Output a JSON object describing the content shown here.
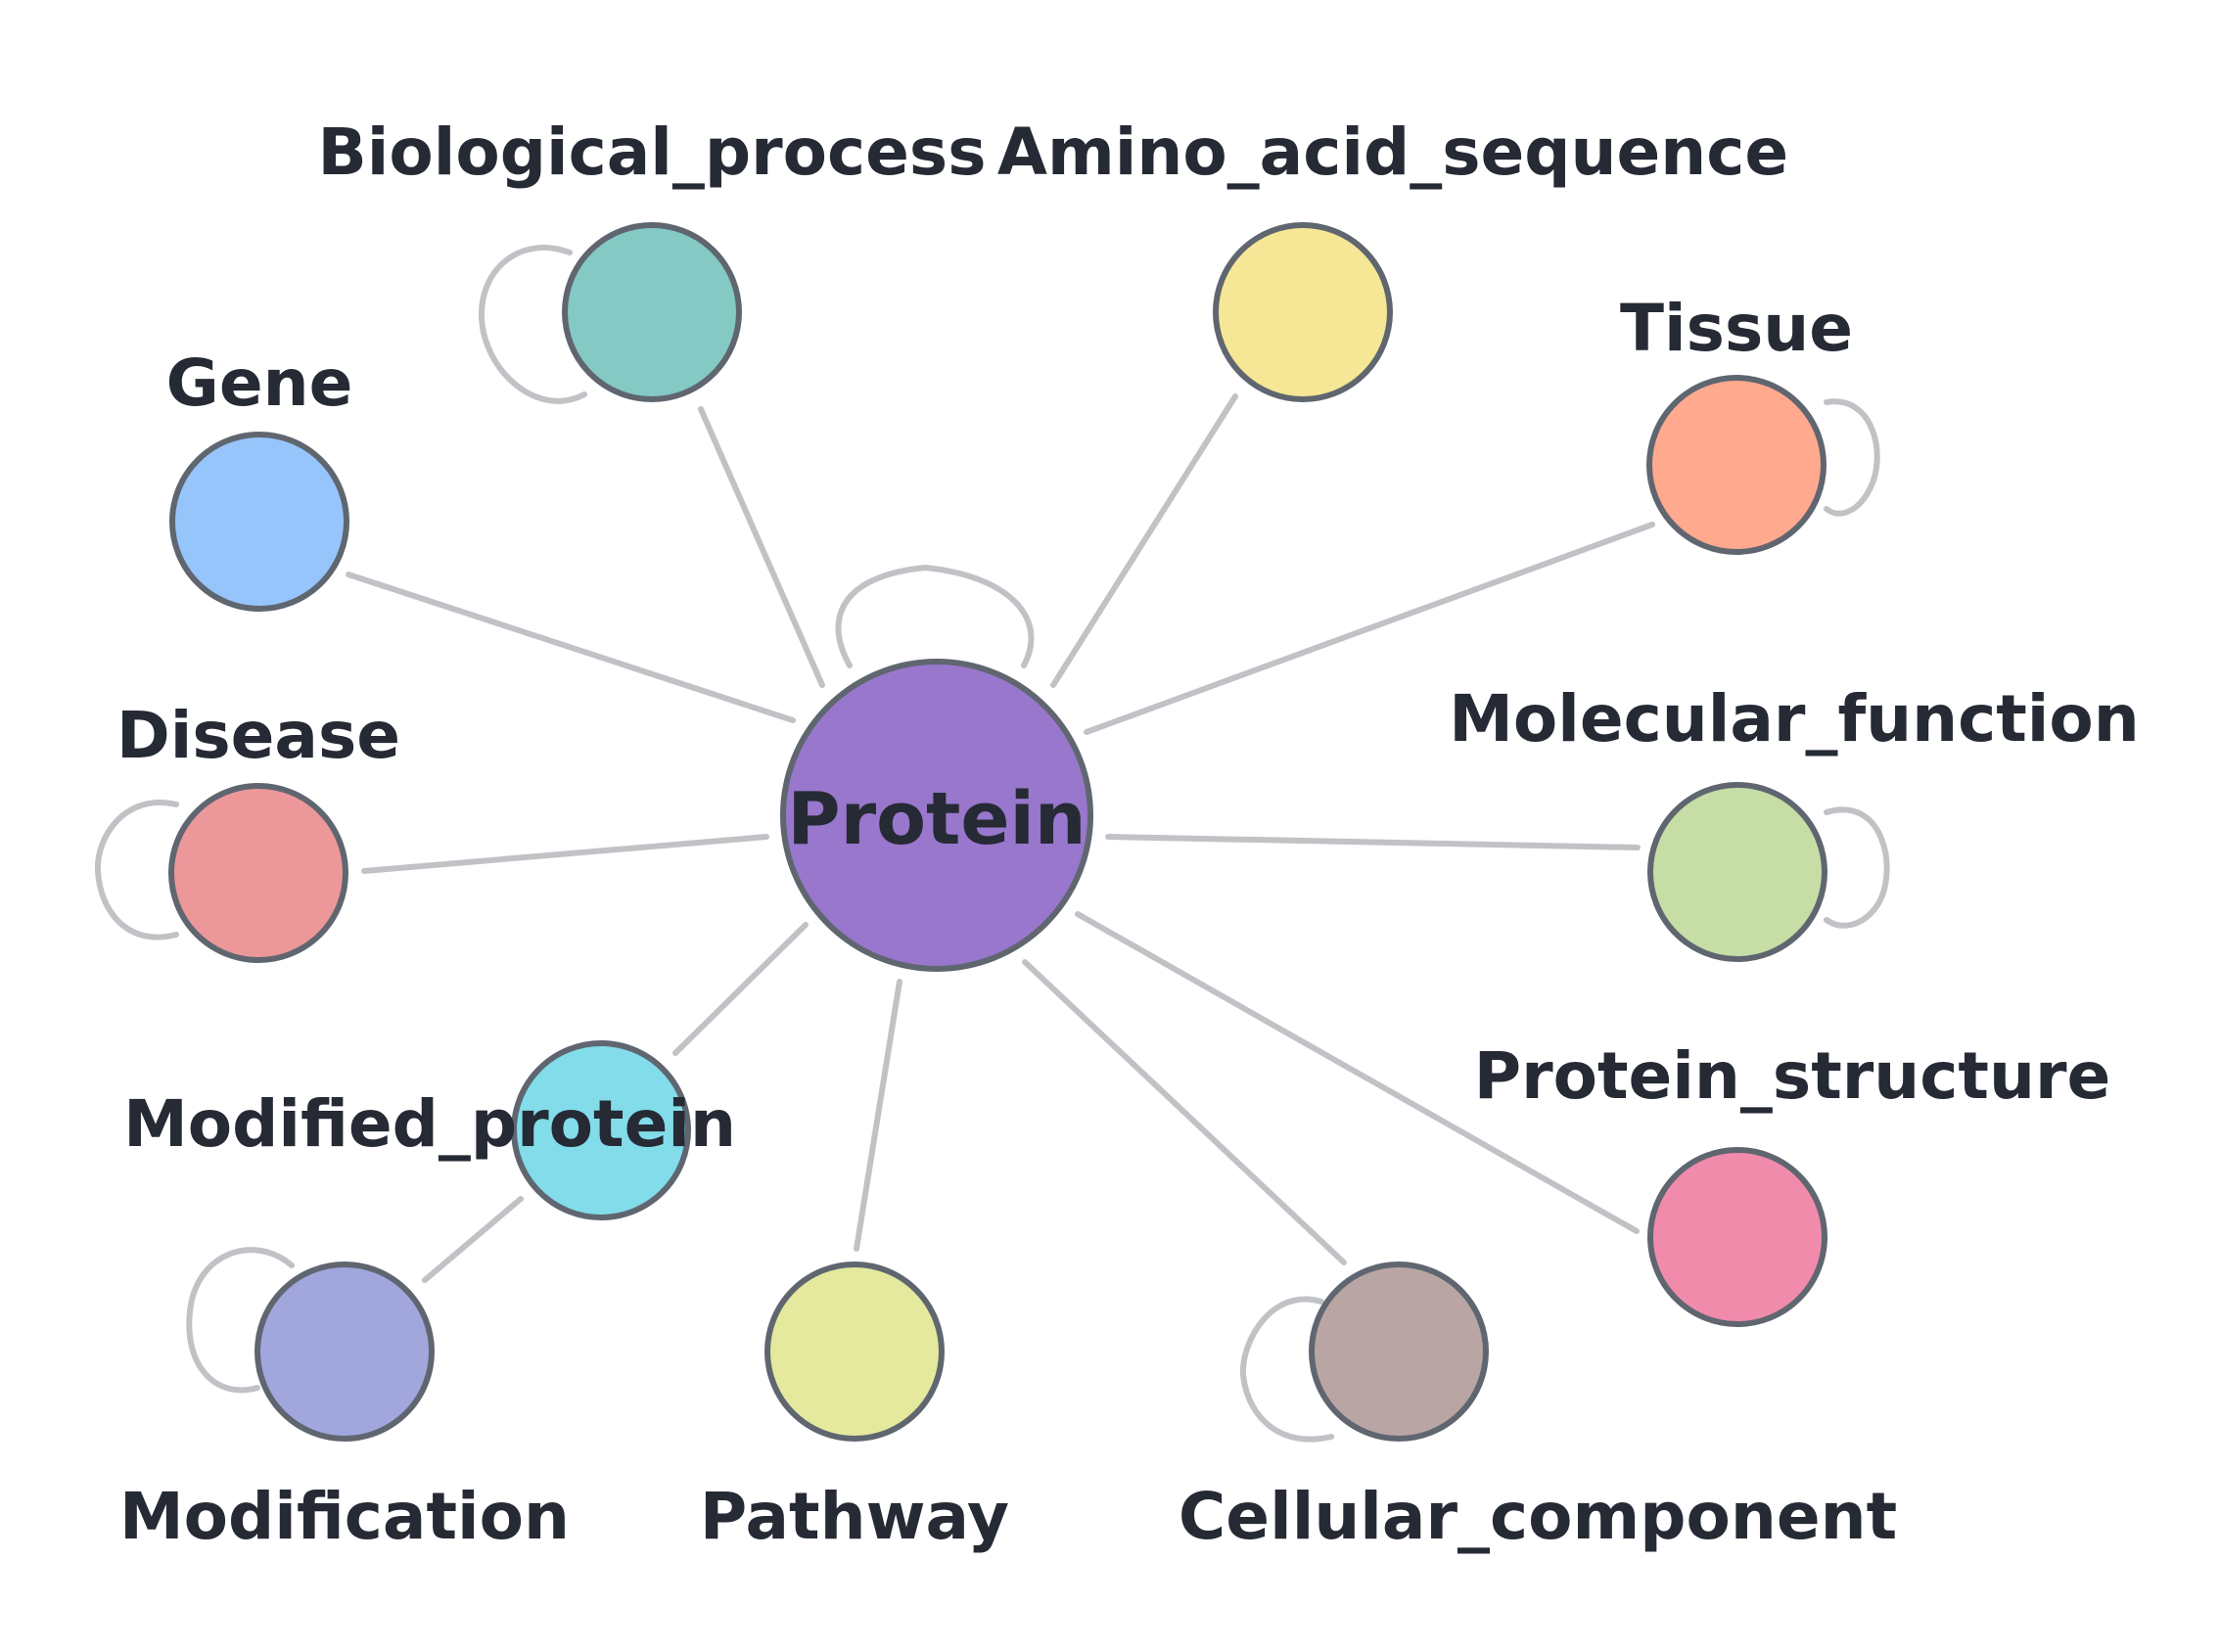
{
  "diagram": {
    "title": "",
    "center": {
      "id": "protein",
      "label": "Protein",
      "color": "#9877cc",
      "self_loop": true
    },
    "nodes": [
      {
        "id": "biological_process",
        "label": "Biological_process",
        "color": "#84c9c3",
        "self_loop": true
      },
      {
        "id": "amino_acid_sequence",
        "label": "Amino_acid_sequence",
        "color": "#f5e795",
        "self_loop": false
      },
      {
        "id": "tissue",
        "label": "Tissue",
        "color": "#ffa98e",
        "self_loop": true
      },
      {
        "id": "gene",
        "label": "Gene",
        "color": "#96c5fb",
        "self_loop": false
      },
      {
        "id": "disease",
        "label": "Disease",
        "color": "#ec989a",
        "self_loop": true
      },
      {
        "id": "molecular_function",
        "label": "Molecular_function",
        "color": "#c6dea5",
        "self_loop": true
      },
      {
        "id": "modified_protein",
        "label": "Modified_protein",
        "color": "#82dcea",
        "self_loop": false
      },
      {
        "id": "protein_structure",
        "label": "Protein_structure",
        "color": "#f18bac",
        "self_loop": false
      },
      {
        "id": "modification",
        "label": "Modification",
        "color": "#a1a6dd",
        "self_loop": true
      },
      {
        "id": "pathway",
        "label": "Pathway",
        "color": "#e4e99d",
        "self_loop": false
      },
      {
        "id": "cellular_component",
        "label": "Cellular_component",
        "color": "#b9a6a4",
        "self_loop": true
      }
    ],
    "edges": [
      {
        "source": "protein",
        "target": "biological_process"
      },
      {
        "source": "protein",
        "target": "amino_acid_sequence"
      },
      {
        "source": "protein",
        "target": "tissue"
      },
      {
        "source": "protein",
        "target": "gene"
      },
      {
        "source": "protein",
        "target": "disease"
      },
      {
        "source": "protein",
        "target": "molecular_function"
      },
      {
        "source": "protein",
        "target": "modified_protein"
      },
      {
        "source": "protein",
        "target": "protein_structure"
      },
      {
        "source": "protein",
        "target": "pathway"
      },
      {
        "source": "protein",
        "target": "cellular_component"
      },
      {
        "source": "modified_protein",
        "target": "modification"
      }
    ]
  }
}
